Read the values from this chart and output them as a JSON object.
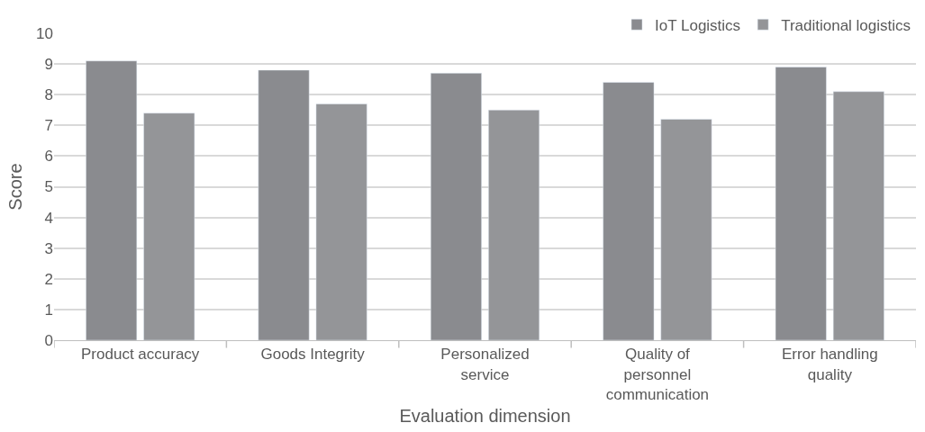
{
  "chart_data": {
    "type": "bar",
    "xlabel": "Evaluation dimension",
    "ylabel": "Score",
    "categories": [
      "Product accuracy",
      "Goods Integrity",
      "Personalized service",
      "Quality of personnel communication",
      "Error handling quality"
    ],
    "series": [
      {
        "name": "IoT Logistics",
        "color": "#8a8b8f",
        "values": [
          9.1,
          8.8,
          8.7,
          8.4,
          8.9
        ]
      },
      {
        "name": "Traditional logistics",
        "color": "#949598",
        "values": [
          7.4,
          7.7,
          7.5,
          7.2,
          8.1
        ]
      }
    ],
    "ylim": [
      0,
      10
    ],
    "yticks": [
      0,
      1,
      2,
      3,
      4,
      5,
      6,
      7,
      8,
      9,
      10
    ],
    "grid": "y",
    "legend": "top right"
  }
}
